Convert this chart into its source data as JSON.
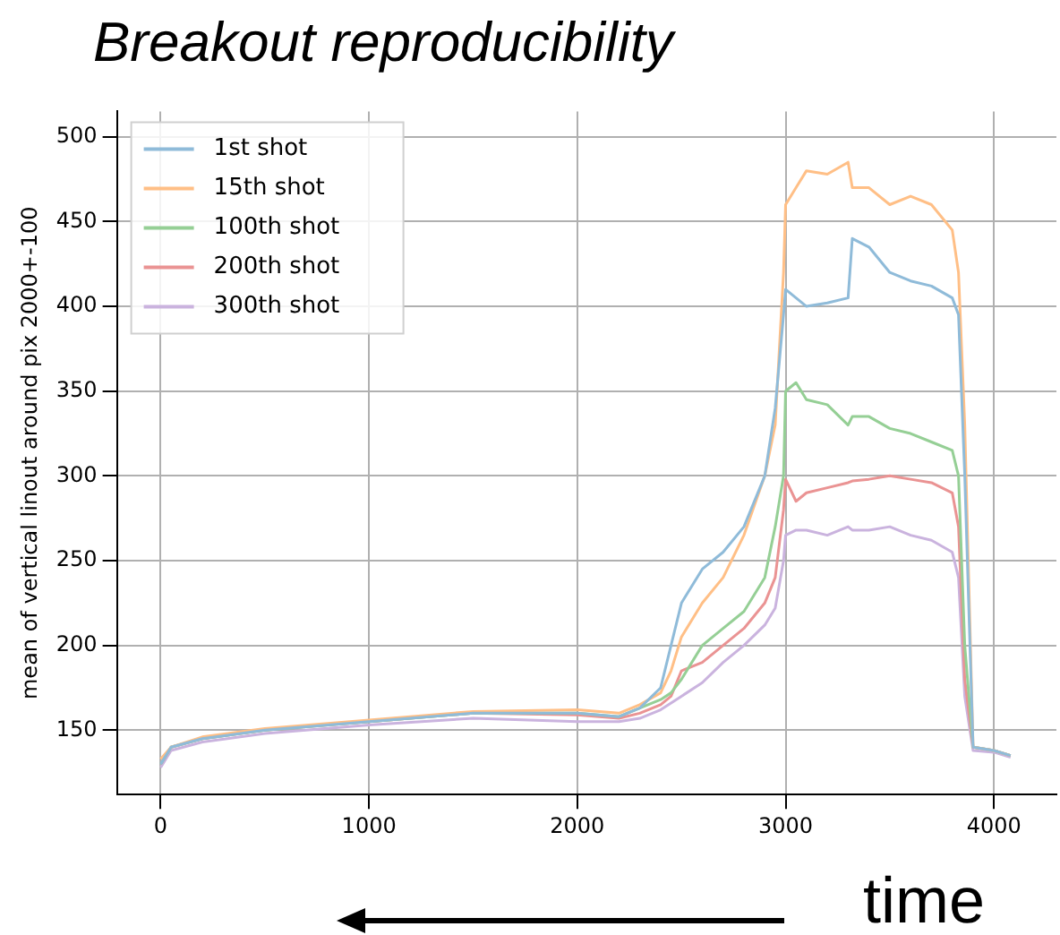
{
  "chart_data": {
    "type": "line",
    "title": "Breakout reproducibility",
    "ylabel": "mean of vertical linout around pix 2000+-100",
    "annotations": [
      "time"
    ],
    "xlim": [
      -210,
      4300
    ],
    "xticks": [
      0,
      1000,
      2000,
      3000,
      4000
    ],
    "ylim": [
      112,
      515
    ],
    "yticks": [
      150,
      200,
      250,
      300,
      350,
      400,
      450,
      500
    ],
    "grid": true,
    "legend": "top left",
    "marker": "none",
    "line_style": "solid",
    "x": [
      0,
      50,
      200,
      500,
      1000,
      1500,
      2000,
      2200,
      2300,
      2400,
      2450,
      2500,
      2600,
      2700,
      2800,
      2900,
      2950,
      2990,
      3000,
      3050,
      3100,
      3200,
      3300,
      3320,
      3400,
      3500,
      3600,
      3700,
      3800,
      3830,
      3860,
      3900,
      4000,
      4080
    ],
    "series": [
      {
        "name": "1st shot",
        "color": "#8fbbd9",
        "values": [
          130,
          140,
          145,
          150,
          155,
          160,
          160,
          158,
          163,
          175,
          200,
          225,
          245,
          255,
          270,
          300,
          340,
          395,
          410,
          405,
          400,
          402,
          405,
          440,
          435,
          420,
          415,
          412,
          405,
          395,
          300,
          140,
          138,
          135
        ]
      },
      {
        "name": "15th shot",
        "color": "#ffbf86",
        "values": [
          133,
          140,
          146,
          151,
          156,
          161,
          162,
          160,
          165,
          172,
          185,
          205,
          225,
          240,
          265,
          300,
          330,
          420,
          460,
          470,
          480,
          478,
          485,
          470,
          470,
          460,
          465,
          460,
          445,
          420,
          330,
          140,
          138,
          135
        ]
      },
      {
        "name": "100th shot",
        "color": "#95cf95",
        "values": [
          130,
          140,
          145,
          150,
          155,
          160,
          160,
          158,
          163,
          168,
          172,
          180,
          200,
          210,
          220,
          240,
          270,
          300,
          350,
          355,
          345,
          342,
          330,
          335,
          335,
          328,
          325,
          320,
          315,
          300,
          200,
          140,
          138,
          135
        ]
      },
      {
        "name": "200th shot",
        "color": "#ea9393",
        "values": [
          130,
          140,
          145,
          150,
          155,
          160,
          159,
          157,
          160,
          165,
          170,
          185,
          190,
          200,
          210,
          225,
          240,
          280,
          298,
          285,
          290,
          293,
          296,
          297,
          298,
          300,
          298,
          296,
          290,
          270,
          180,
          140,
          138,
          135
        ]
      },
      {
        "name": "300th shot",
        "color": "#cab3de",
        "values": [
          128,
          138,
          143,
          148,
          153,
          157,
          155,
          155,
          157,
          162,
          166,
          170,
          178,
          190,
          200,
          212,
          222,
          250,
          265,
          268,
          268,
          265,
          270,
          268,
          268,
          270,
          265,
          262,
          255,
          240,
          170,
          138,
          137,
          134
        ]
      }
    ]
  }
}
